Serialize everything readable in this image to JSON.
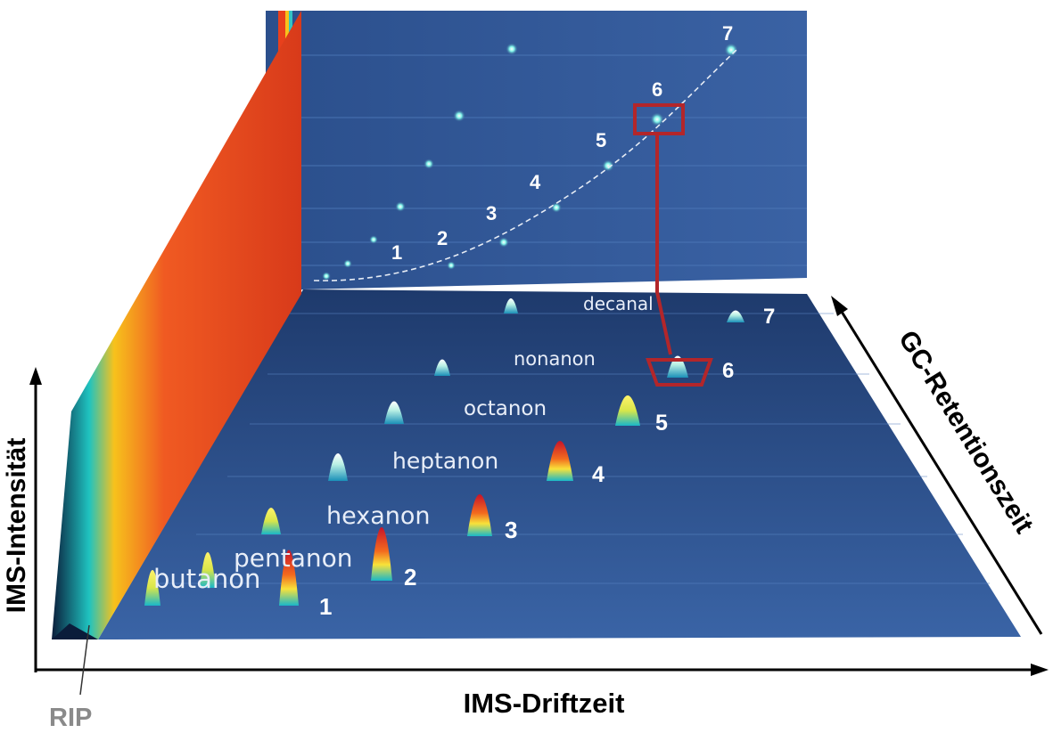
{
  "axes": {
    "intensity": "IMS-Intensität",
    "drift": "IMS-Driftzeit",
    "retention": "GC-Retentionszeit"
  },
  "rip_label": "RIP",
  "compounds": [
    {
      "name": "butanon",
      "n": "1"
    },
    {
      "name": "pentanon",
      "n": "2"
    },
    {
      "name": "hexanon",
      "n": "3"
    },
    {
      "name": "heptanon",
      "n": "4"
    },
    {
      "name": "octanon",
      "n": "5"
    },
    {
      "name": "nonanon",
      "n": "6"
    },
    {
      "name": "decanal",
      "n": "7"
    }
  ],
  "dimer_numbers": [
    "1",
    "2",
    "3",
    "4",
    "5",
    "6",
    "7"
  ],
  "colors": {
    "plot_blue": "#2c4f86",
    "back_wall": "#2f5590",
    "rip_wall": "#e8401c",
    "highlight_box": "#b3262a"
  }
}
